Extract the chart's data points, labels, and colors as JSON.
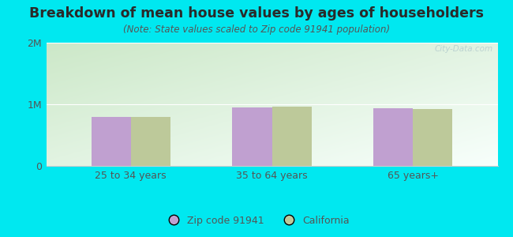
{
  "title": "Breakdown of mean house values by ages of householders",
  "subtitle": "(Note: State values scaled to Zip code 91941 population)",
  "categories": [
    "25 to 34 years",
    "35 to 64 years",
    "65 years+"
  ],
  "zip_values": [
    800000,
    950000,
    940000
  ],
  "ca_values": [
    790000,
    960000,
    920000
  ],
  "ylim": [
    0,
    2000000
  ],
  "yticks": [
    0,
    1000000,
    2000000
  ],
  "ytick_labels": [
    "0",
    "1M",
    "2M"
  ],
  "zip_color": "#c0a0d0",
  "ca_color": "#bdc99a",
  "background_color": "#00e8f0",
  "plot_bg_grad_top_left": "#cce8c8",
  "plot_bg_bottom_right": "#f8fffc",
  "title_color": "#2a2a2a",
  "subtitle_color": "#555555",
  "axis_color": "#cccccc",
  "tick_color": "#555555",
  "legend_zip_label": "Zip code 91941",
  "legend_ca_label": "California",
  "watermark": "City-Data.com",
  "bar_width": 0.28,
  "title_fontsize": 12.5,
  "subtitle_fontsize": 8.5,
  "tick_fontsize": 9
}
